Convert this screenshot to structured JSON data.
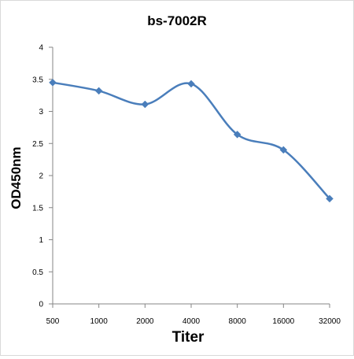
{
  "chart_data": {
    "type": "line",
    "title": "bs-7002R",
    "xlabel": "Titer",
    "ylabel": "OD450nm",
    "categories": [
      "500",
      "1000",
      "2000",
      "4000",
      "8000",
      "16000",
      "32000"
    ],
    "series": [
      {
        "values": [
          3.45,
          3.32,
          3.11,
          3.43,
          2.64,
          2.4,
          1.64
        ],
        "color": "#4a7ebb",
        "marker": "diamond",
        "smooth": true
      }
    ],
    "ylim": [
      0,
      4
    ],
    "yticks": [
      0,
      0.5,
      1,
      1.5,
      2,
      2.5,
      3,
      3.5,
      4
    ],
    "ytick_labels": [
      "0",
      "0.5",
      "1",
      "1.5",
      "2",
      "2.5",
      "3",
      "3.5",
      "4"
    ],
    "grid": false,
    "legend": "none"
  }
}
